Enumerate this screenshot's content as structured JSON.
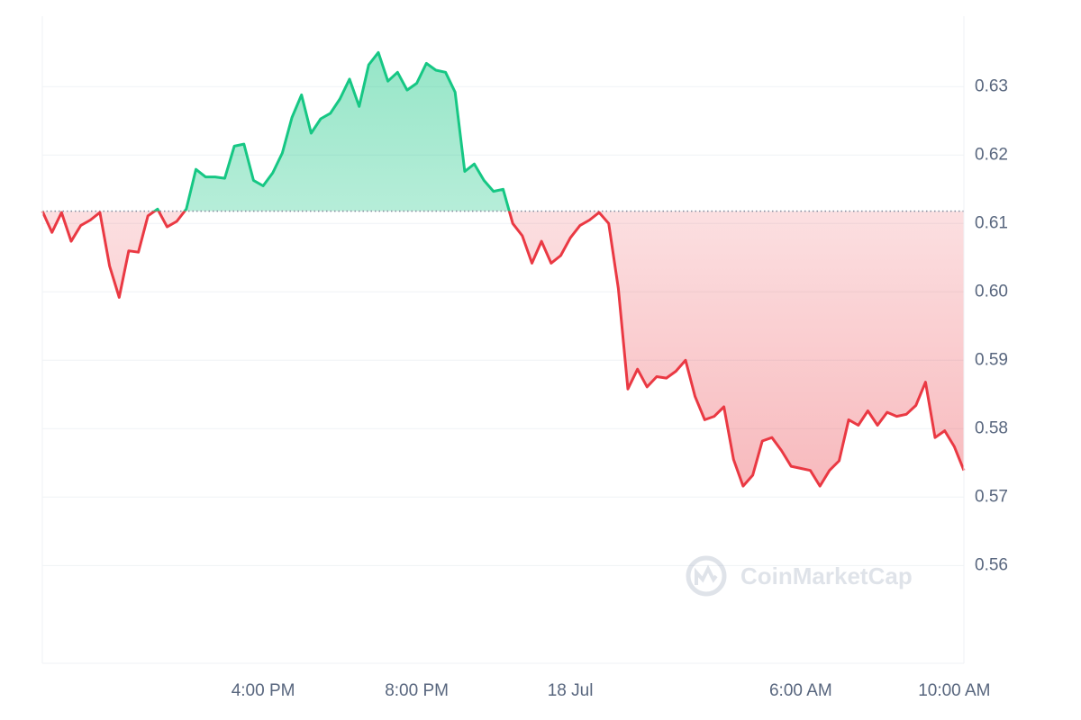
{
  "chart_data": {
    "type": "line",
    "watermark": "CoinMarketCap",
    "categories": [
      null,
      null,
      null,
      null,
      null,
      null,
      null,
      null,
      null,
      null,
      null,
      null,
      null,
      null,
      null,
      null,
      null,
      null,
      null,
      null,
      null,
      null,
      null,
      "4:00 PM",
      null,
      null,
      null,
      null,
      null,
      null,
      null,
      null,
      null,
      null,
      null,
      null,
      null,
      null,
      null,
      "8:00 PM",
      null,
      null,
      null,
      null,
      null,
      null,
      null,
      null,
      null,
      null,
      null,
      null,
      null,
      null,
      null,
      "18 Jul",
      null,
      null,
      null,
      null,
      null,
      null,
      null,
      null,
      null,
      null,
      null,
      null,
      null,
      null,
      null,
      null,
      null,
      null,
      null,
      null,
      null,
      null,
      null,
      "6:00 AM",
      null,
      null,
      null,
      null,
      null,
      null,
      null,
      null,
      null,
      null,
      null,
      null,
      null,
      null,
      null,
      "10:00 AM",
      null
    ],
    "values": [
      0.6118,
      0.6087,
      0.6116,
      0.6074,
      0.6097,
      0.6105,
      0.6116,
      0.6038,
      0.5992,
      0.606,
      0.6058,
      0.6111,
      0.6121,
      0.6095,
      0.6103,
      0.6121,
      0.6179,
      0.6168,
      0.6168,
      0.6166,
      0.6213,
      0.6216,
      0.6163,
      0.6155,
      0.6174,
      0.6203,
      0.6255,
      0.6288,
      0.6232,
      0.6253,
      0.6261,
      0.6282,
      0.6311,
      0.6271,
      0.6332,
      0.635,
      0.6308,
      0.6321,
      0.6295,
      0.6305,
      0.6334,
      0.6324,
      0.6321,
      0.6292,
      0.6176,
      0.6187,
      0.6163,
      0.6147,
      0.615,
      0.61,
      0.6082,
      0.6042,
      0.6074,
      0.6042,
      0.6053,
      0.6079,
      0.6097,
      0.6105,
      0.6116,
      0.61,
      0.6005,
      0.5858,
      0.5887,
      0.5861,
      0.5876,
      0.5874,
      0.5884,
      0.59,
      0.5847,
      0.5813,
      0.5818,
      0.5832,
      0.5755,
      0.5716,
      0.5732,
      0.5782,
      0.5787,
      0.5768,
      0.5745,
      0.5742,
      0.5739,
      0.5716,
      0.5739,
      0.5753,
      0.5813,
      0.5805,
      0.5826,
      0.5805,
      0.5824,
      0.5818,
      0.5821,
      0.5834,
      0.5868,
      0.5787,
      0.5797,
      0.5774,
      0.5739
    ],
    "baseline": 0.6118,
    "up_color": "#16c784",
    "down_color": "#ea3943",
    "ylim": [
      0.5457,
      0.6403
    ],
    "yticks": [
      0.56,
      0.57,
      0.58,
      0.59,
      {
        "value": 0.6,
        "label": "0.60"
      },
      0.61,
      0.62,
      0.63
    ],
    "grid": true
  }
}
